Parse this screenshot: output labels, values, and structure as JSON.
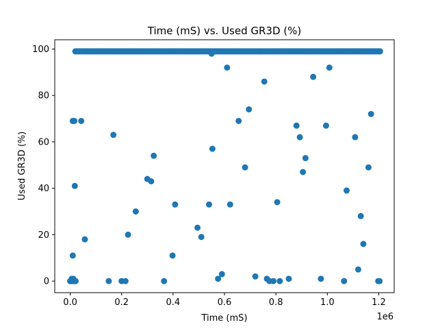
{
  "chart_data": {
    "type": "scatter",
    "title": "Time (mS) vs. Used GR3D (%)",
    "xlabel": "Time (mS)",
    "ylabel": "Used GR3D (%)",
    "x_offset_label": "1e6",
    "xlim": [
      -60000,
      1260000
    ],
    "ylim": [
      -5,
      104
    ],
    "x_ticks": [
      0,
      200000,
      400000,
      600000,
      800000,
      1000000,
      1200000
    ],
    "x_tick_labels": [
      "0.0",
      "0.2",
      "0.4",
      "0.6",
      "0.8",
      "1.0",
      "1.2"
    ],
    "y_ticks": [
      0,
      20,
      40,
      60,
      80,
      100
    ],
    "y_tick_labels": [
      "0",
      "20",
      "40",
      "60",
      "80",
      "100"
    ],
    "grid": false,
    "legend": "none",
    "marker_color": "#1f77b4",
    "dense_band": {
      "y": 99,
      "x_start": 20000,
      "x_end": 1205000
    },
    "series": [
      {
        "x": [
          0,
          3000,
          6000,
          9000,
          12000,
          15000,
          18000,
          21000,
          10000,
          10000,
          16000,
          18000,
          43000,
          57000,
          150000,
          168000,
          200000,
          215000,
          225000,
          255000,
          300000,
          315000,
          325000,
          365000,
          398000,
          408000,
          495000,
          510000,
          540000,
          550000,
          553000,
          575000,
          590000,
          610000,
          622000,
          655000,
          680000,
          695000,
          720000,
          755000,
          765000,
          775000,
          790000,
          805000,
          815000,
          850000,
          880000,
          893000,
          905000,
          915000,
          945000,
          975000,
          995000,
          1008000,
          1065000,
          1075000,
          1108000,
          1120000,
          1130000,
          1140000,
          1160000,
          1170000,
          1198000,
          1203000
        ],
        "y": [
          0,
          0,
          1,
          0,
          1,
          0,
          0,
          0,
          11,
          69,
          69,
          41,
          69,
          18,
          0,
          63,
          0,
          0,
          20,
          30,
          44,
          43,
          54,
          0,
          11,
          33,
          23,
          19,
          33,
          98,
          57,
          1,
          3,
          92,
          33,
          69,
          49,
          74,
          2,
          86,
          1,
          0,
          0,
          34,
          0,
          1,
          67,
          62,
          47,
          53,
          88,
          1,
          67,
          92,
          0,
          39,
          62,
          5,
          28,
          16,
          49,
          72,
          0,
          0
        ]
      }
    ]
  }
}
